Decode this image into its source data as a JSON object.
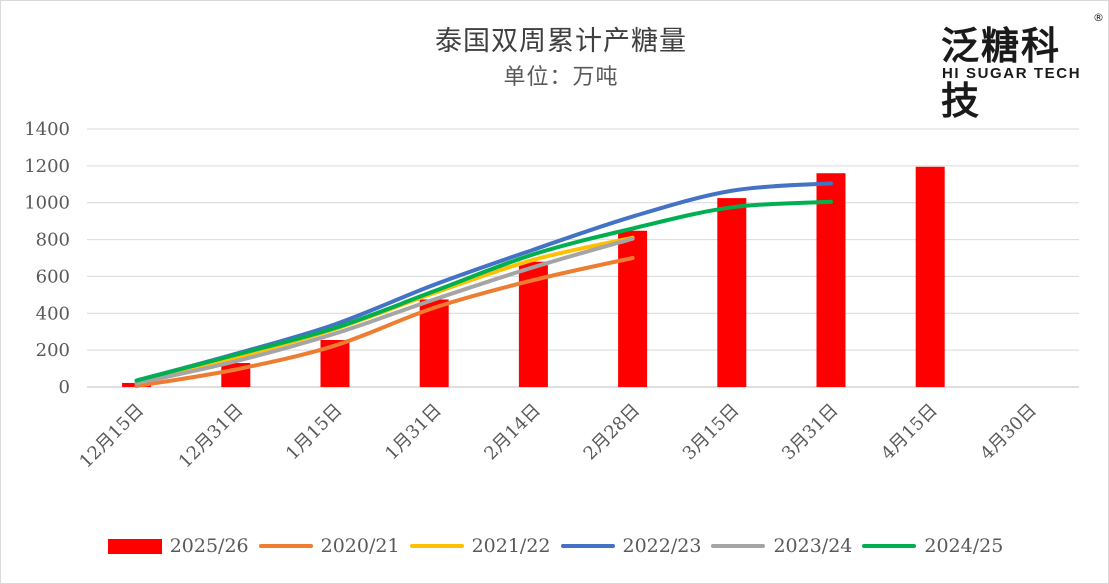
{
  "chart_data": {
    "type": "bar+line",
    "title": "泰国双周累计产糖量",
    "subtitle": "单位：万吨",
    "categories": [
      "12月15日",
      "12月31日",
      "1月15日",
      "1月31日",
      "2月14日",
      "2月28日",
      "3月15日",
      "3月31日",
      "4月15日",
      "4月30日"
    ],
    "ylim": [
      0,
      1400
    ],
    "yticks": [
      0,
      200,
      400,
      600,
      800,
      1000,
      1200,
      1400
    ],
    "grid": true,
    "legend_position": "bottom",
    "bar_series": {
      "name": "2025/26",
      "color": "#ff0000",
      "values": [
        22,
        130,
        255,
        475,
        680,
        848,
        1025,
        1160,
        1195,
        null
      ]
    },
    "line_series": [
      {
        "name": "2020/21",
        "color": "#ed7d31",
        "values": [
          5,
          95,
          225,
          430,
          580,
          700,
          null,
          null,
          null,
          null
        ]
      },
      {
        "name": "2021/22",
        "color": "#ffc000",
        "values": [
          20,
          160,
          315,
          510,
          690,
          810,
          null,
          null,
          null,
          null
        ]
      },
      {
        "name": "2022/23",
        "color": "#4472c4",
        "values": [
          35,
          180,
          340,
          555,
          745,
          925,
          1065,
          1105,
          null,
          null
        ]
      },
      {
        "name": "2023/24",
        "color": "#a5a5a5",
        "values": [
          20,
          140,
          290,
          475,
          650,
          805,
          null,
          null,
          null,
          null
        ]
      },
      {
        "name": "2024/25",
        "color": "#00b050",
        "values": [
          35,
          175,
          320,
          520,
          720,
          860,
          975,
          1005,
          null,
          null
        ]
      }
    ]
  },
  "logo": {
    "cn": "泛糖科技",
    "en": "HI SUGAR TECH",
    "reg": "®"
  }
}
